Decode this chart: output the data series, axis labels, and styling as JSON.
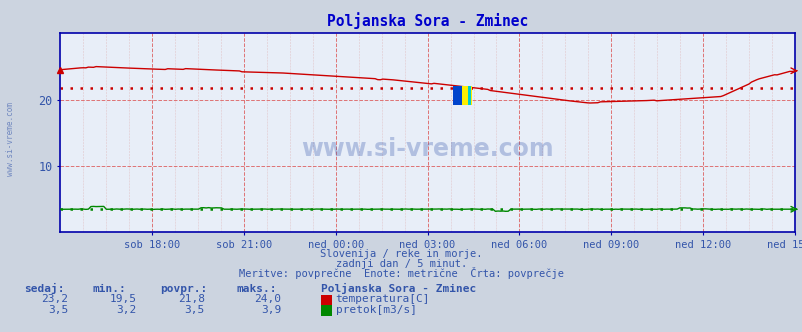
{
  "title": "Poljanska Sora - Zminec",
  "title_color": "#0000cc",
  "bg_color": "#ccd4e0",
  "plot_bg_color": "#e8eef8",
  "border_color": "#0000aa",
  "grid_color_major": "#dd6666",
  "grid_color_minor": "#ddaaaa",
  "temp_color": "#cc0000",
  "temp_avg_color": "#cc0000",
  "flow_color": "#008800",
  "flow_avg_color": "#008800",
  "watermark_color": "#3355aa",
  "tick_color": "#3355aa",
  "x_ticks": [
    "sob 18:00",
    "sob 21:00",
    "ned 00:00",
    "ned 03:00",
    "ned 06:00",
    "ned 09:00",
    "ned 12:00",
    "ned 15:00"
  ],
  "ylim": [
    0,
    30
  ],
  "y_ticks": [
    10,
    20
  ],
  "temp_avg": 21.8,
  "flow_avg": 3.5,
  "n_points": 288,
  "footer_line1": "Slovenija / reke in morje.",
  "footer_line2": "zadnji dan / 5 minut.",
  "footer_line3": "Meritve: povprečne  Enote: metrične  Črta: povprečje",
  "footer_color": "#3355aa",
  "table_header_color": "#3355aa",
  "table_value_color": "#3355aa",
  "station_name": "Poljanska Sora - Zminec",
  "col_headers": [
    "sedaj:",
    "min.:",
    "povpr.:",
    "maks.:"
  ],
  "temp_row": [
    "23,2",
    "19,5",
    "21,8",
    "24,0"
  ],
  "flow_row": [
    "3,5",
    "3,2",
    "3,5",
    "3,9"
  ],
  "temp_label": "temperatura[C]",
  "flow_label": "pretok[m3/s]",
  "watermark": "www.si-vreme.com",
  "side_label": "www.si-vreme.com"
}
